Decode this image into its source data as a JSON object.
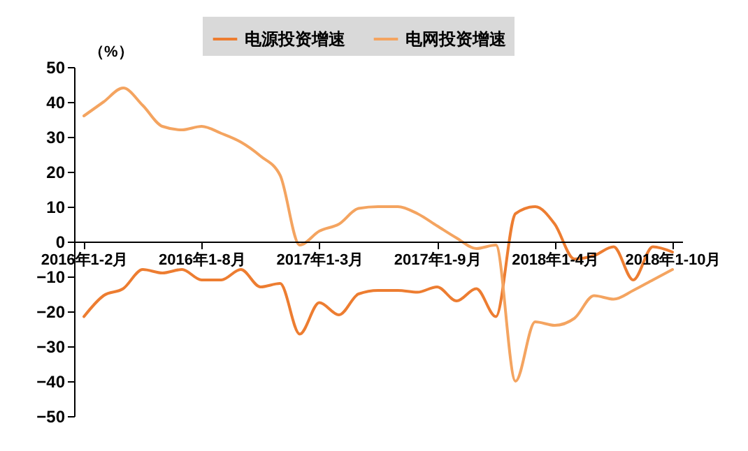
{
  "chart_data": {
    "type": "line",
    "ylabel": "（%）",
    "categories": [
      "2016年1-2月",
      null,
      null,
      null,
      null,
      null,
      "2016年1-8月",
      null,
      null,
      null,
      null,
      null,
      "2017年1-3月",
      null,
      null,
      null,
      null,
      null,
      "2017年1-9月",
      null,
      null,
      null,
      null,
      null,
      "2018年1-4月",
      null,
      null,
      null,
      null,
      null,
      "2018年1-10月"
    ],
    "series": [
      {
        "name": "电源投资增速",
        "color": "#ed7d31",
        "values": [
          -21.5,
          -15.5,
          -13.5,
          -8,
          -9,
          -8,
          -11,
          -11,
          -8,
          -13,
          -12,
          -26.5,
          -17.5,
          -21,
          -15,
          -14,
          -14,
          -14.5,
          -13,
          -17,
          -13.5,
          -21.5,
          8,
          10,
          5,
          -5,
          -4,
          -1.5,
          -11,
          -1.5,
          -3
        ]
      },
      {
        "name": "电网投资增速",
        "color": "#f4a460",
        "values": [
          36,
          40,
          44,
          39,
          33,
          32,
          33,
          31,
          28.5,
          24.5,
          19,
          -1,
          3,
          5,
          9.5,
          10,
          10,
          8,
          4.5,
          1,
          -2,
          -1,
          -40,
          -23,
          -24,
          -22,
          -15.5,
          -16.5,
          -14,
          -11,
          -8
        ]
      }
    ],
    "ylim": [
      -50,
      50
    ],
    "yticks": [
      -50,
      -40,
      -30,
      -20,
      -10,
      0,
      10,
      20,
      30,
      40,
      50
    ],
    "grid": false,
    "legend": "top",
    "marker": "none",
    "line_style": "solid"
  }
}
